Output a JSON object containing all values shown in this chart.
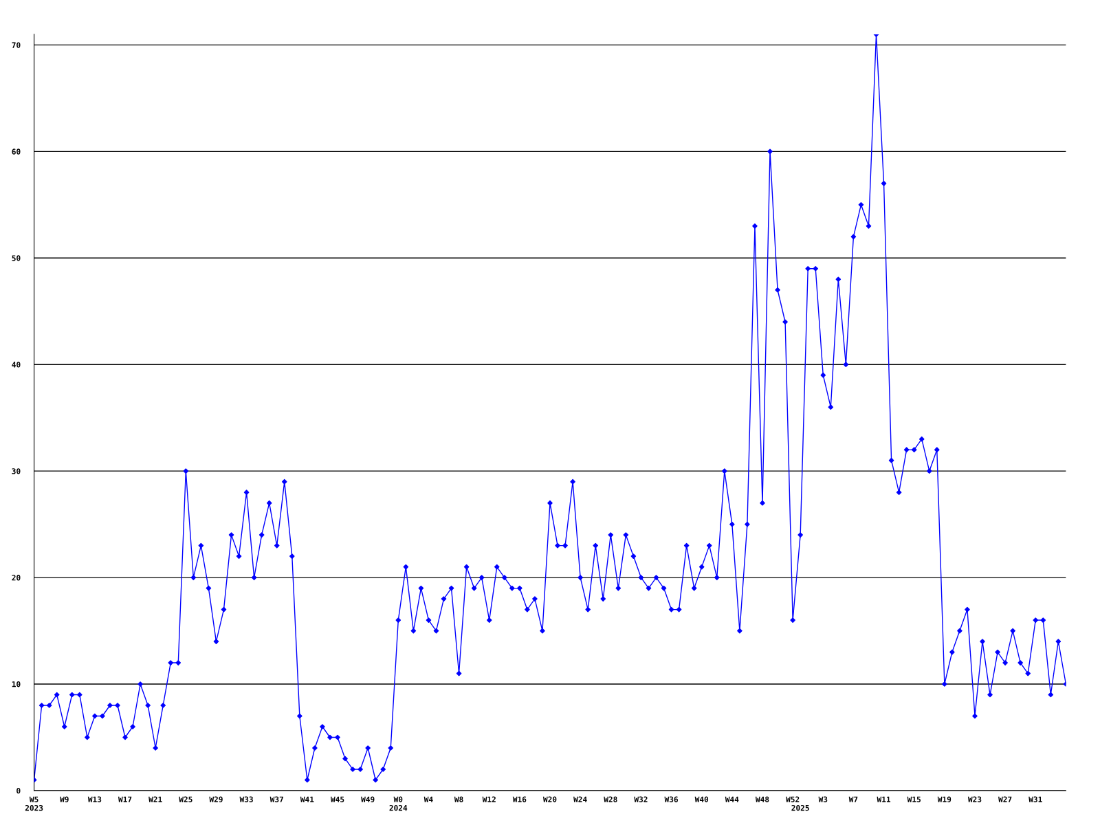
{
  "chart_data": {
    "type": "line",
    "categories": [
      "W5\n2023",
      null,
      null,
      null,
      "W9",
      null,
      null,
      null,
      "W13",
      null,
      null,
      null,
      "W17",
      null,
      null,
      null,
      "W21",
      null,
      null,
      null,
      "W25",
      null,
      null,
      null,
      "W29",
      null,
      null,
      null,
      "W33",
      null,
      null,
      null,
      "W37",
      null,
      null,
      null,
      "W41",
      null,
      null,
      null,
      "W45",
      null,
      null,
      null,
      "W49",
      null,
      null,
      null,
      "W0\n2024",
      null,
      null,
      null,
      "W4",
      null,
      null,
      null,
      "W8",
      null,
      null,
      null,
      "W12",
      null,
      null,
      null,
      "W16",
      null,
      null,
      null,
      "W20",
      null,
      null,
      null,
      "W24",
      null,
      null,
      null,
      "W28",
      null,
      null,
      null,
      "W32",
      null,
      null,
      null,
      "W36",
      null,
      null,
      null,
      "W40",
      null,
      null,
      null,
      "W44",
      null,
      null,
      null,
      "W48",
      null,
      null,
      null,
      "W52",
      "\n2025",
      null,
      null,
      "W3",
      null,
      null,
      null,
      "W7",
      null,
      null,
      null,
      "W11",
      null,
      null,
      null,
      "W15",
      null,
      null,
      null,
      "W19",
      null,
      null,
      null,
      "W23",
      null,
      null,
      null,
      "W27",
      null,
      null,
      null,
      "W31",
      null,
      null,
      null,
      null
    ],
    "series": [
      {
        "color": "#0000ff",
        "values": [
          1,
          8,
          8,
          9,
          6,
          9,
          9,
          5,
          7,
          7,
          8,
          8,
          5,
          6,
          10,
          8,
          4,
          8,
          12,
          12,
          30,
          20,
          23,
          19,
          14,
          17,
          24,
          22,
          28,
          20,
          24,
          27,
          23,
          29,
          22,
          7,
          1,
          4,
          6,
          5,
          5,
          3,
          2,
          2,
          4,
          1,
          2,
          4,
          16,
          21,
          15,
          19,
          16,
          15,
          18,
          19,
          11,
          21,
          19,
          20,
          16,
          21,
          20,
          19,
          19,
          17,
          18,
          15,
          27,
          23,
          23,
          29,
          20,
          17,
          23,
          18,
          24,
          19,
          24,
          22,
          20,
          19,
          20,
          19,
          17,
          17,
          23,
          19,
          21,
          23,
          20,
          30,
          25,
          15,
          25,
          53,
          27,
          60,
          47,
          44,
          16,
          24,
          49,
          49,
          39,
          36,
          48,
          40,
          52,
          55,
          53,
          71,
          57,
          31,
          28,
          32,
          32,
          33,
          30,
          32,
          10,
          13,
          15,
          17,
          7,
          14,
          9,
          13,
          12,
          15,
          12,
          11,
          16,
          16,
          9,
          14,
          10
        ]
      }
    ],
    "ylim": [
      0,
      71
    ],
    "yticks": [
      0,
      10,
      20,
      30,
      40,
      50,
      60,
      70
    ],
    "grid": "y",
    "marker": "diamond",
    "line_style": "solid",
    "legend": false
  }
}
